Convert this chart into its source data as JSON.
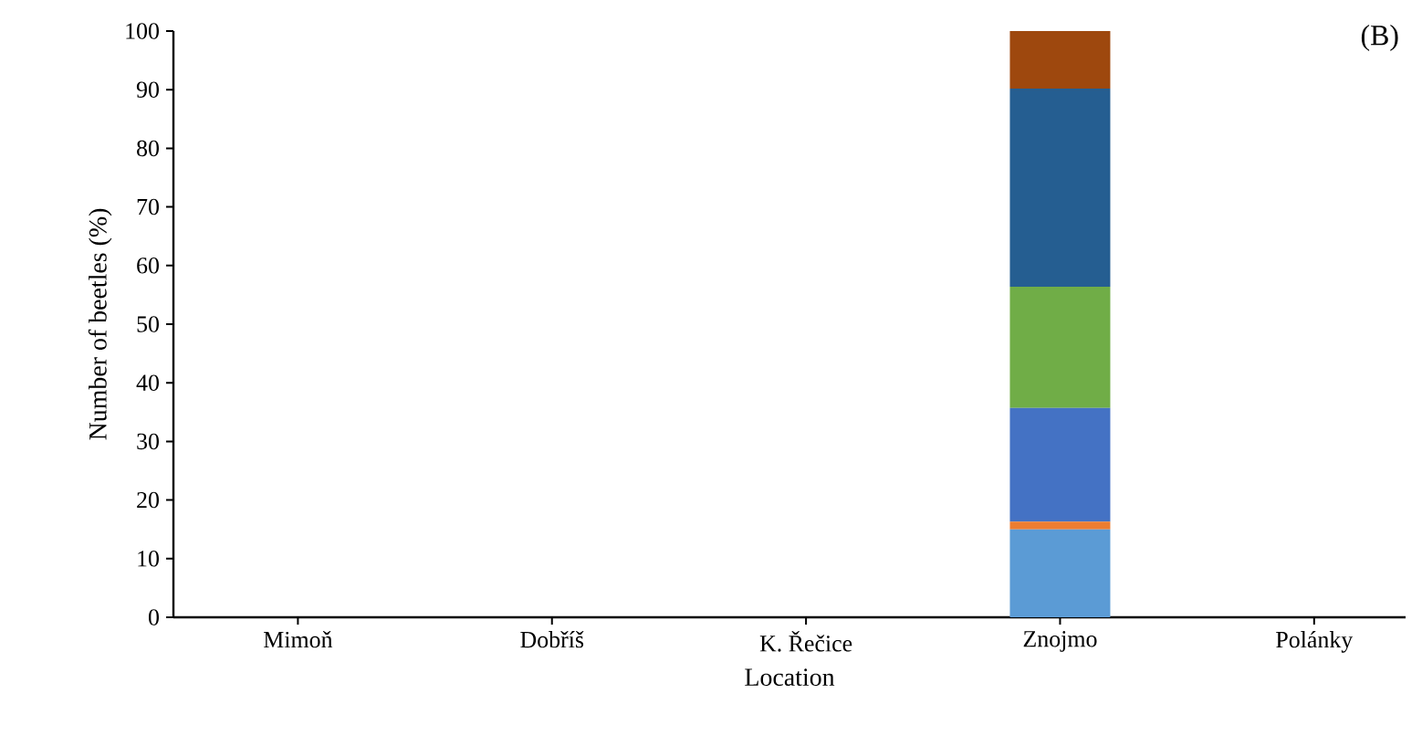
{
  "chart_data": {
    "type": "bar",
    "stacked": true,
    "xlabel": "Location",
    "ylabel": "Number of beetles (%)",
    "annotations": [
      "(B)"
    ],
    "categories": [
      "Mimoň",
      "Dobříš",
      "K. Řečice",
      "Znojmo",
      "Polánky"
    ],
    "ylim": [
      0,
      100
    ],
    "yticks": [
      0,
      10,
      20,
      30,
      40,
      50,
      60,
      70,
      80,
      90,
      100
    ],
    "grid": false,
    "series": [
      {
        "color": "#5b9bd5",
        "values": [
          0,
          0,
          0,
          15,
          0
        ]
      },
      {
        "color": "#ed7d31",
        "values": [
          0,
          0,
          0,
          1.3,
          0
        ]
      },
      {
        "color": "#4472c4",
        "values": [
          0,
          0,
          0,
          19.4,
          0
        ]
      },
      {
        "color": "#70ad47",
        "values": [
          0,
          0,
          0,
          20.7,
          0
        ]
      },
      {
        "color": "#255e91",
        "values": [
          0,
          0,
          0,
          33.8,
          0
        ]
      },
      {
        "color": "#9e480e",
        "values": [
          0,
          0,
          0,
          9.8,
          0
        ]
      }
    ]
  }
}
